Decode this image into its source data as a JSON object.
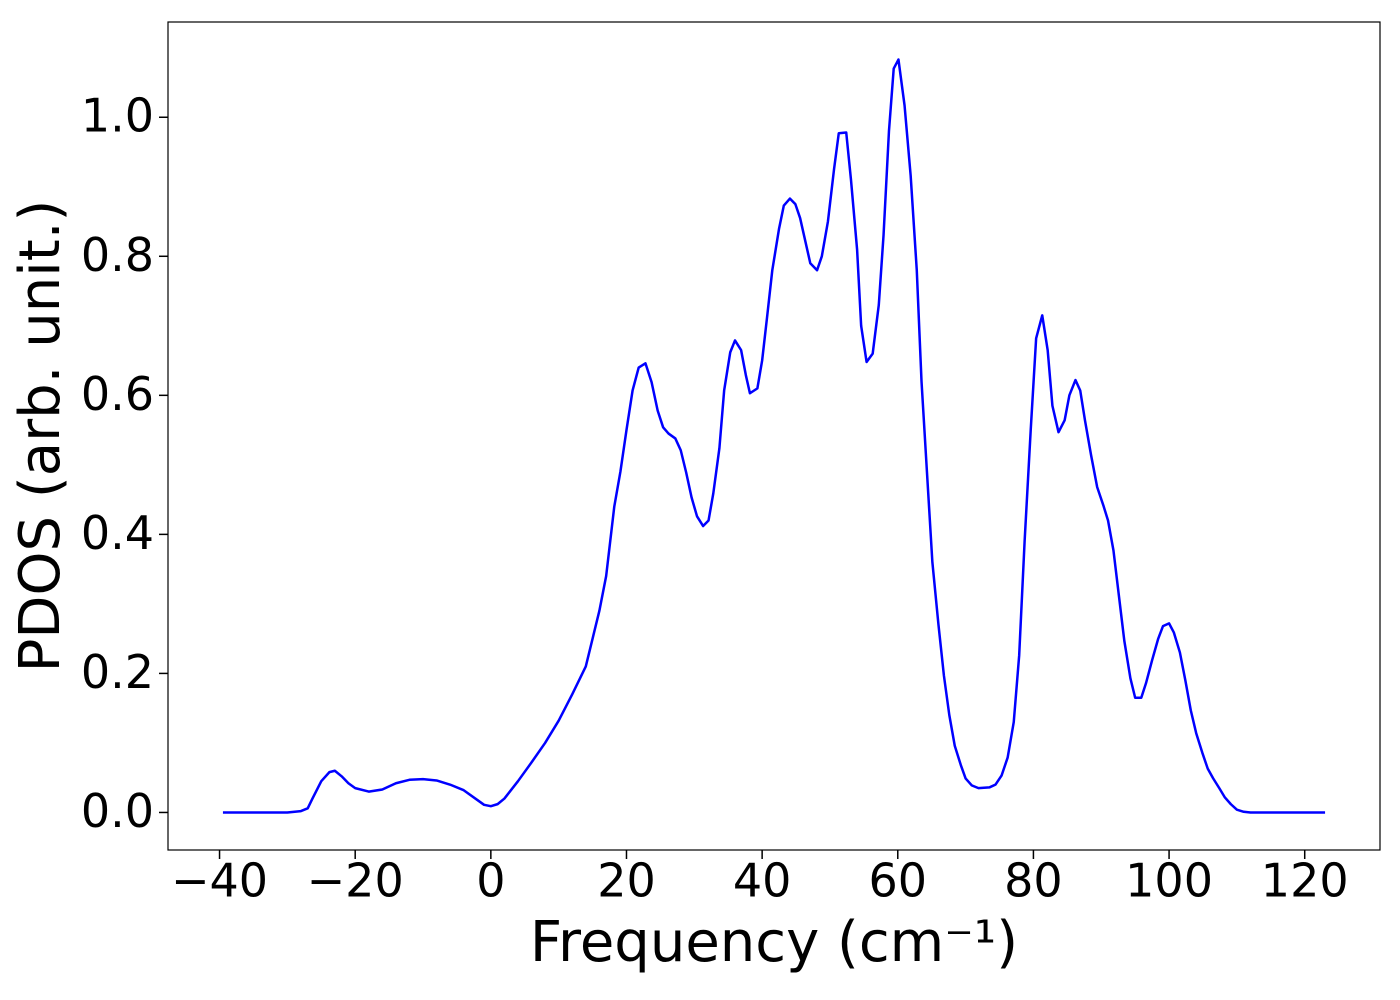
{
  "chart_data": {
    "type": "line",
    "x_label": "Frequency (cm⁻¹)",
    "y_label": "PDOS (arb. unit.)",
    "x": [
      -39.5,
      -30,
      -28,
      -27,
      -26.3,
      -25,
      -23.8,
      -23,
      -22,
      -21,
      -20,
      -18,
      -16,
      -14,
      -12,
      -10,
      -8,
      -6,
      -4,
      -2,
      -1,
      0,
      1,
      2,
      4,
      6,
      8,
      10,
      12,
      14,
      15,
      16,
      17,
      18.2,
      19.1,
      20,
      20.9,
      21.8,
      22.8,
      23.7,
      24.6,
      25.4,
      26.2,
      27.2,
      28,
      28.8,
      29.6,
      30.4,
      31.3,
      32.1,
      32.8,
      33.7,
      34.4,
      35.3,
      36,
      36.9,
      37.6,
      38.2,
      39.3,
      40,
      40.7,
      41.5,
      42.5,
      43.2,
      44.1,
      44.9,
      45.6,
      47.1,
      48.1,
      48.8,
      49.7,
      50.6,
      51.3,
      52.4,
      53.1,
      54,
      54.6,
      55.4,
      56.3,
      57.2,
      57.9,
      58.7,
      59.4,
      60.1,
      61,
      61.9,
      62.8,
      63.5,
      64.3,
      65.1,
      66,
      66.8,
      67.6,
      68.4,
      69.3,
      70,
      70.9,
      71.9,
      73.5,
      74.4,
      75.3,
      76.2,
      77.1,
      77.9,
      78.7,
      79.6,
      80.4,
      81.3,
      82.1,
      82.8,
      83.7,
      84.6,
      85.3,
      86.2,
      86.9,
      87.6,
      88.5,
      89.4,
      90.3,
      91,
      91.8,
      92.6,
      93.4,
      94.3,
      95,
      95.9,
      96.6,
      97.5,
      98.4,
      99.1,
      100,
      100.7,
      101.6,
      102.4,
      103.2,
      104,
      104.9,
      105.7,
      106.5,
      107.4,
      108.2,
      109.1,
      110,
      111,
      112,
      123
    ],
    "series": [
      {
        "name": "PDOS",
        "color": "#0000ff",
        "values": [
          0,
          0,
          0.002,
          0.006,
          0.02,
          0.045,
          0.058,
          0.06,
          0.052,
          0.042,
          0.035,
          0.03,
          0.033,
          0.042,
          0.047,
          0.048,
          0.046,
          0.04,
          0.032,
          0.018,
          0.011,
          0.009,
          0.012,
          0.02,
          0.045,
          0.072,
          0.1,
          0.132,
          0.17,
          0.21,
          0.25,
          0.29,
          0.34,
          0.44,
          0.49,
          0.55,
          0.607,
          0.64,
          0.646,
          0.619,
          0.578,
          0.554,
          0.545,
          0.538,
          0.521,
          0.489,
          0.453,
          0.426,
          0.412,
          0.42,
          0.459,
          0.524,
          0.607,
          0.662,
          0.679,
          0.665,
          0.629,
          0.603,
          0.61,
          0.65,
          0.71,
          0.78,
          0.84,
          0.873,
          0.883,
          0.875,
          0.855,
          0.79,
          0.78,
          0.8,
          0.85,
          0.925,
          0.977,
          0.978,
          0.91,
          0.81,
          0.7,
          0.648,
          0.66,
          0.73,
          0.83,
          0.98,
          1.07,
          1.083,
          1.017,
          0.916,
          0.78,
          0.62,
          0.49,
          0.36,
          0.27,
          0.197,
          0.14,
          0.096,
          0.068,
          0.049,
          0.039,
          0.035,
          0.036,
          0.04,
          0.053,
          0.079,
          0.13,
          0.226,
          0.39,
          0.55,
          0.682,
          0.715,
          0.665,
          0.585,
          0.547,
          0.564,
          0.6,
          0.622,
          0.607,
          0.564,
          0.514,
          0.468,
          0.442,
          0.42,
          0.377,
          0.312,
          0.247,
          0.193,
          0.165,
          0.165,
          0.186,
          0.219,
          0.25,
          0.268,
          0.272,
          0.259,
          0.23,
          0.19,
          0.147,
          0.114,
          0.086,
          0.063,
          0.049,
          0.035,
          0.022,
          0.012,
          0.004,
          0.001,
          0,
          0
        ]
      }
    ],
    "xlim": [
      -47.6,
      131.1
    ],
    "ylim": [
      -0.054,
      1.137
    ],
    "xticks": [
      {
        "value": -40,
        "label": "−40"
      },
      {
        "value": -20,
        "label": "−20"
      },
      0,
      20,
      40,
      60,
      80,
      100,
      120
    ],
    "yticks": [
      {
        "value": 0,
        "label": "0.0"
      },
      0.2,
      0.4,
      0.6,
      0.8,
      {
        "value": 1,
        "label": "1.0"
      }
    ],
    "grid": false
  }
}
